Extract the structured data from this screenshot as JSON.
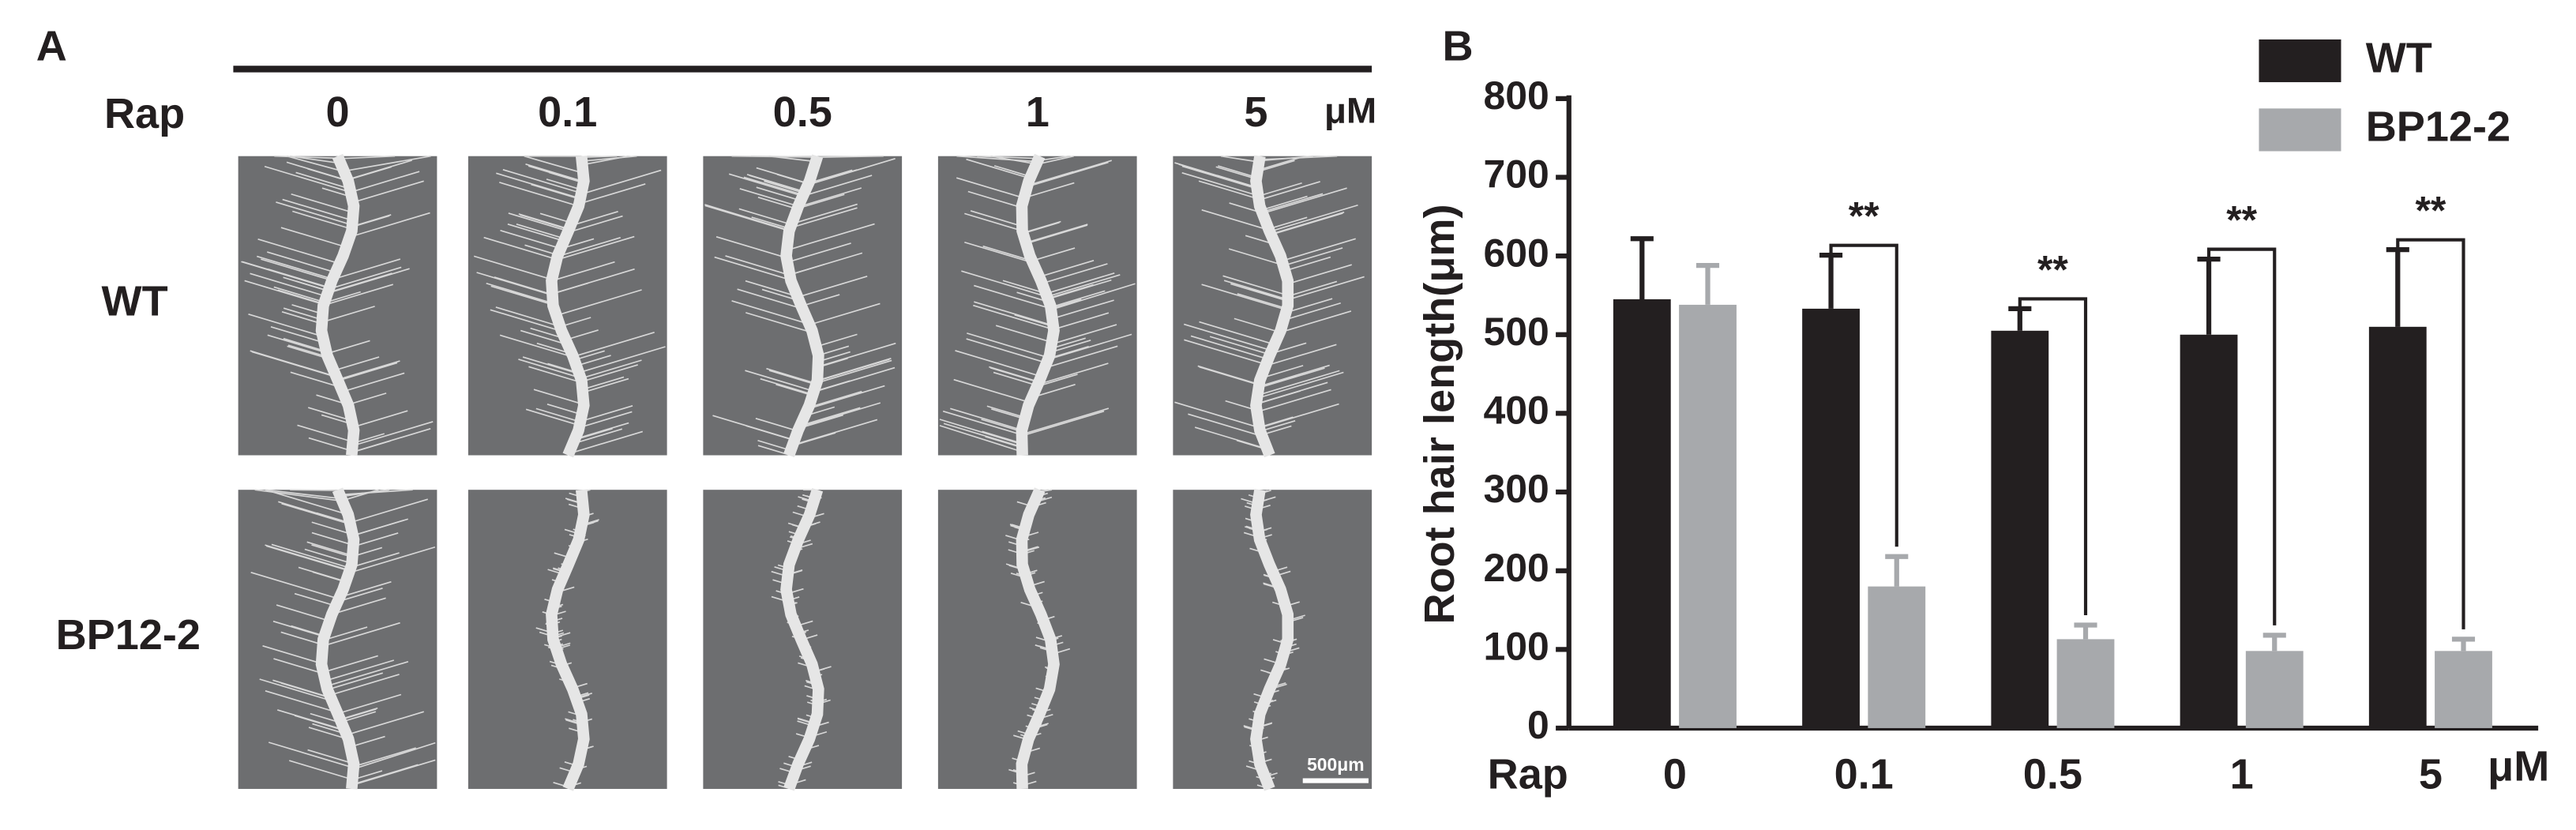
{
  "panel_a": {
    "label": "A",
    "treatment": "Rap",
    "concentrations": [
      "0",
      "0.1",
      "0.5",
      "1",
      "5"
    ],
    "unit": "μM",
    "rows": [
      "WT",
      "BP12-2"
    ],
    "scale_bar": "500μm"
  },
  "chart_data": {
    "type": "bar",
    "panel_label": "B",
    "y_label": "Root hair length(μm)",
    "x_label": "Rap",
    "x_unit": "μM",
    "categories": [
      "0",
      "0.1",
      "0.5",
      "1",
      "5"
    ],
    "series": [
      {
        "name": "WT",
        "color": "#231f20",
        "values": [
          545,
          533,
          505,
          500,
          510
        ],
        "errors": [
          77,
          68,
          28,
          96,
          98
        ]
      },
      {
        "name": "BP12-2",
        "color": "#a7a9ac",
        "values": [
          538,
          180,
          113,
          98,
          98
        ],
        "errors": [
          50,
          38,
          18,
          20,
          15
        ]
      }
    ],
    "annotations": [
      null,
      "**",
      "**",
      "**",
      "**"
    ],
    "ylim": [
      0,
      800
    ],
    "yticks": [
      0,
      100,
      200,
      300,
      400,
      500,
      600,
      700,
      800
    ],
    "legend": "top-right"
  }
}
